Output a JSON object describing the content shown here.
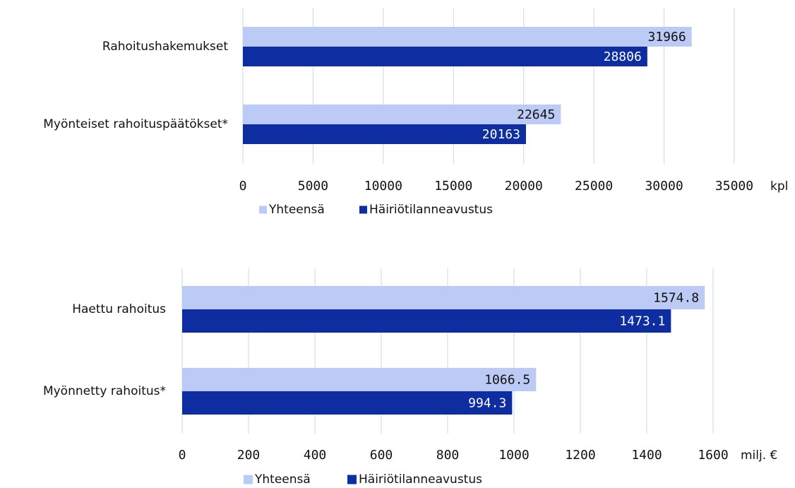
{
  "colors": {
    "yhteensa": "#bccaf6",
    "hairio": "#0d2da0",
    "grid": "#c9d6ee"
  },
  "chart_data": [
    {
      "type": "bar",
      "orientation": "horizontal",
      "categories": [
        "Rahoitushakemukset",
        "Myönteiset rahoituspäätökset*"
      ],
      "series": [
        {
          "name": "Yhteensä",
          "values": [
            31966,
            22645
          ]
        },
        {
          "name": "Häiriötilanneavustus",
          "values": [
            28806,
            20163
          ]
        }
      ],
      "xlim": [
        0,
        35000
      ],
      "xticks": [
        "0",
        "5000",
        "10000",
        "15000",
        "20000",
        "25000",
        "30000",
        "35000"
      ],
      "xunit": "kpl",
      "data_labels": [
        [
          "31966",
          "22645"
        ],
        [
          "28806",
          "20163"
        ]
      ],
      "grid": true,
      "legend": "bottom"
    },
    {
      "type": "bar",
      "orientation": "horizontal",
      "categories": [
        "Haettu rahoitus",
        "Myönnetty rahoitus*"
      ],
      "series": [
        {
          "name": "Yhteensä",
          "values": [
            1574.8,
            1066.5
          ]
        },
        {
          "name": "Häiriötilanneavustus",
          "values": [
            1473.1,
            994.3
          ]
        }
      ],
      "xlim": [
        0,
        1600
      ],
      "xticks": [
        "0",
        "200",
        "400",
        "600",
        "800",
        "1000",
        "1200",
        "1400",
        "1600"
      ],
      "xunit": "milj. €",
      "data_labels": [
        [
          "1574.8",
          "1066.5"
        ],
        [
          "1473.1",
          "994.3"
        ]
      ],
      "grid": true,
      "legend": "bottom"
    }
  ]
}
